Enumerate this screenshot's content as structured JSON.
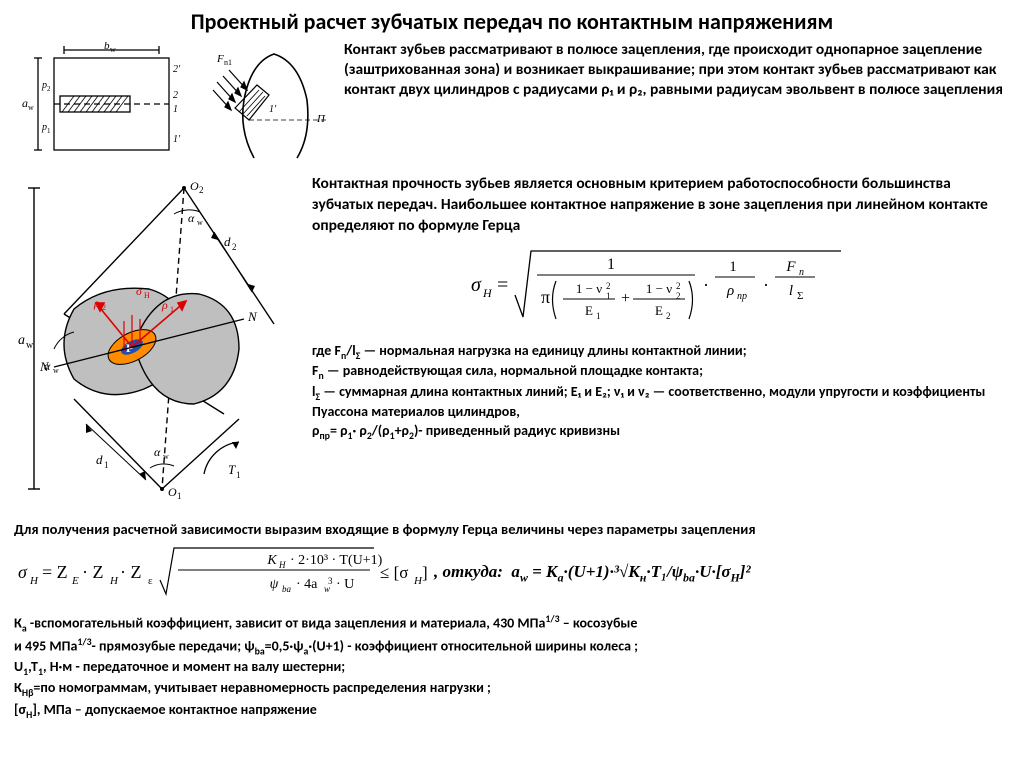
{
  "title": "Проектный  расчет зубчатых передач по контактным напряжениям",
  "para1": "Контакт зубьев рассматривают в полюсе зацепления, где происходит однопарное зацепление (заштрихованная зона) и возникает выкрашивание; при этом контакт зубьев рассматривают как контакт двух цилиндров с радиусами ρ₁ и ρ₂, равными радиусам эвольвент в полюсе зацепления",
  "para2": "Контактная прочность зубьев является основным критерием работоспособности большинства зубчатых передач. Наибольшее контактное напряжение в зоне зацепления при линейном контакте определяют по формуле Герца",
  "hertz_formula_html": "σ<sub>H</sub> = √( 1 / ( π ( (1−ν₁²)/E₁ + (1−ν₂²)/E₂ ) ) · (1/ρ<sub>пр</sub>) · (F<sub>n</sub>/l<sub>Σ</sub>) )",
  "para3_html": "где F<sub>n</sub>/l<sub>Σ</sub> — нормальная нагрузка на единицу длины контактной линии;<br>F<sub>n</sub> — равнодействующая сила, нормальной площадке контакта;<br>l<sub>Σ</sub> — суммарная длина контактных линий; E₁ и E₂; ν₁ и ν₂ — соответственно, модули упругости и коэффициенты Пуассона материалов цилиндров,<br>ρ<sub>пр</sub>= ρ<sub>1</sub>· ρ<sub>2</sub>/(ρ<sub>1</sub>+ρ<sub>2</sub>)- приведенный радиус кривизны",
  "para4": "Для получения расчетной зависимости выразим входящие в формулу Герца величины через параметры зацепления",
  "sigma_formula_html": "σ<sub>H</sub> = Z<sub>E</sub> · Z<sub>H</sub> · Z<sub>ε</sub> √( K<sub>H</sub> · 2·10³ · T(U+1) / (ψ<sub>ba</sub> · 4a<sub>w</sub>³ · U) ) ≤ [σ<sub>H</sub>]",
  "aw_formula_html": ", откуда:&nbsp;&nbsp;a<sub>w</sub> = К<sub>a</sub>·(U+1)·³√К<sub>н</sub>·T₁/ψ<sub>ba</sub>·U·[σ<sub>H</sub>]²",
  "para5_html": "К<sub>a</sub> -вспомогательный коэффициент, зависит от вида зацепления и материала, 430 МПа<sup>1/3</sup> – косозубые<br> и 495 МПа<sup>1/3</sup>- прямозубые передачи; ψ<sub>ba</sub>=0,5·ψ<sub>a</sub>·(U+1)  - коэффициент относительной ширины колеса ;<br> U<sub>1</sub>,T<sub>1</sub>, Н·м  - передаточное и момент на валу шестерни;<br>К<sub>Hβ</sub>=по номограммам, учитывает неравномерность распределения нагрузки ;<br>[σ<sub>H</sub>], МПа – допускаемое контактное напряжение",
  "colors": {
    "text": "#000000",
    "accent1": "#ff8c00",
    "accent2": "#1e50b3",
    "hatch": "#000000"
  },
  "diag1_labels": {
    "bw": "b_w",
    "aw": "a_w",
    "p1": "p_1",
    "p2": "p_2",
    "Fn1": "F_n1",
    "1": "1",
    "2": "2",
    "1p": "1'",
    "2p": "2'",
    "P": "П"
  },
  "diag2_labels": {
    "O1": "O_1",
    "O2": "O_2",
    "d1": "d_1",
    "d2": "d_2",
    "aw": "a_w",
    "alpha": "α_w",
    "rho1": "ρ_1",
    "rho2": "ρ_2",
    "sigmaH": "σ_H",
    "N": "N",
    "P": "P",
    "T1": "T_1"
  }
}
